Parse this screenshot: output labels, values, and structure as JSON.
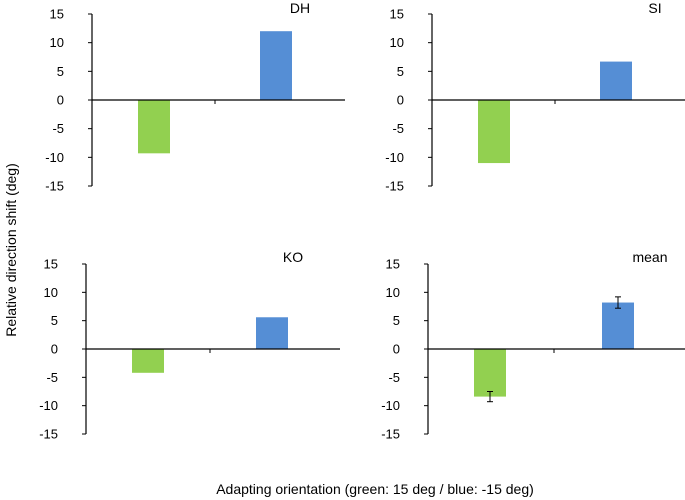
{
  "figure": {
    "ylabel": "Relative direction shift (deg)",
    "xlabel": "Adapting orientation (green: 15 deg / blue: -15 deg)",
    "colors": {
      "green": "#92d050",
      "blue": "#558ed5",
      "axis": "#000000"
    }
  },
  "chart_data": [
    {
      "type": "bar",
      "title": "DH",
      "categories": [
        "15 deg",
        "-15 deg"
      ],
      "values": [
        -9.3,
        12.0
      ],
      "colors": [
        "#92d050",
        "#558ed5"
      ],
      "ylim": [
        -15,
        15
      ],
      "yticks": [
        "15",
        "10",
        "5",
        "0",
        "-5",
        "-10",
        "-15"
      ],
      "grid": false
    },
    {
      "type": "bar",
      "title": "SI",
      "categories": [
        "15 deg",
        "-15 deg"
      ],
      "values": [
        -11.0,
        6.7
      ],
      "colors": [
        "#92d050",
        "#558ed5"
      ],
      "ylim": [
        -15,
        15
      ],
      "yticks": [
        "15",
        "10",
        "5",
        "0",
        "-5",
        "-10",
        "-15"
      ],
      "grid": false
    },
    {
      "type": "bar",
      "title": "KO",
      "categories": [
        "15 deg",
        "-15 deg"
      ],
      "values": [
        -4.2,
        5.6
      ],
      "colors": [
        "#92d050",
        "#558ed5"
      ],
      "ylim": [
        -15,
        15
      ],
      "yticks": [
        "15",
        "10",
        "5",
        "0",
        "-5",
        "-10",
        "-15"
      ],
      "grid": false
    },
    {
      "type": "bar",
      "title": "mean",
      "categories": [
        "15 deg",
        "-15 deg"
      ],
      "values": [
        -8.4,
        8.2
      ],
      "errors": [
        0.9,
        1.0
      ],
      "colors": [
        "#92d050",
        "#558ed5"
      ],
      "ylim": [
        -15,
        15
      ],
      "yticks": [
        "15",
        "10",
        "5",
        "0",
        "-5",
        "-10",
        "-15"
      ],
      "grid": false
    }
  ]
}
